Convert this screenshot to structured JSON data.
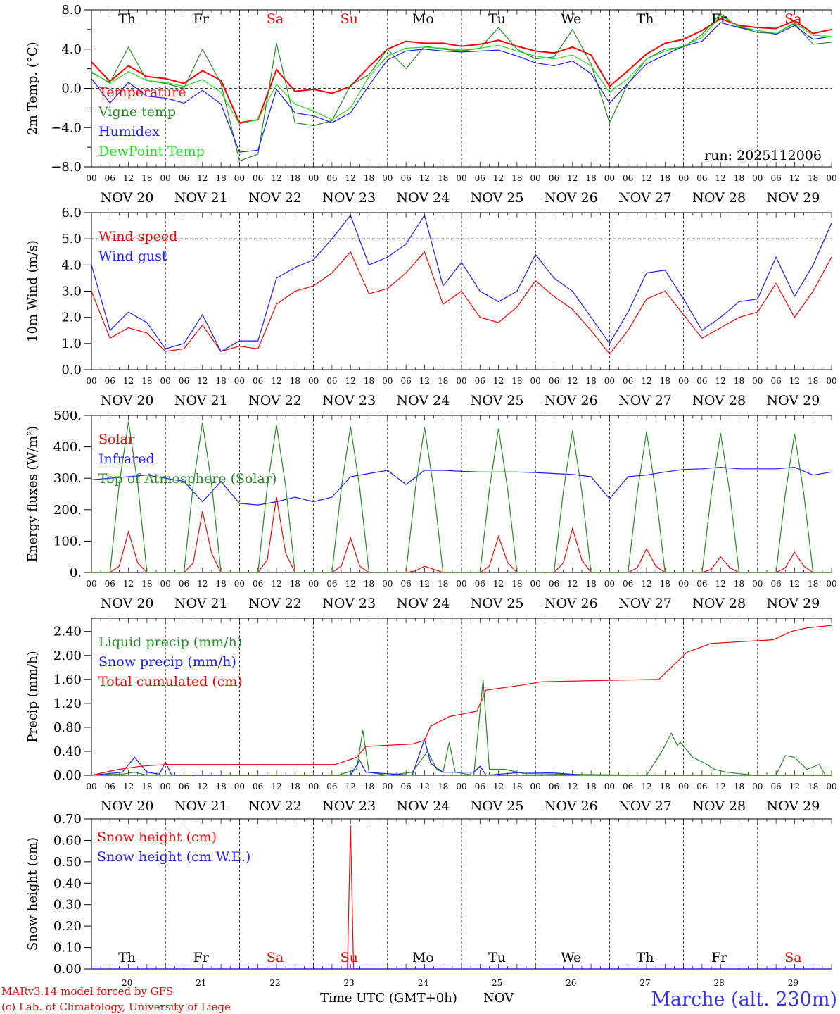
{
  "colors": {
    "red": "#ff0000",
    "darkgreen": "#228b22",
    "blue": "#1a1aff",
    "lightgreen": "#22e022",
    "black": "#000000"
  },
  "days": [
    {
      "abbr": "Th",
      "date": "NOV 20",
      "num": "20",
      "weekend": false
    },
    {
      "abbr": "Fr",
      "date": "NOV 21",
      "num": "21",
      "weekend": false
    },
    {
      "abbr": "Sa",
      "date": "NOV 22",
      "num": "22",
      "weekend": true
    },
    {
      "abbr": "Su",
      "date": "NOV 23",
      "num": "23",
      "weekend": true
    },
    {
      "abbr": "Mo",
      "date": "NOV 24",
      "num": "24",
      "weekend": false
    },
    {
      "abbr": "Tu",
      "date": "NOV 25",
      "num": "25",
      "weekend": false
    },
    {
      "abbr": "We",
      "date": "NOV 26",
      "num": "26",
      "weekend": false
    },
    {
      "abbr": "Th",
      "date": "NOV 27",
      "num": "27",
      "weekend": false
    },
    {
      "abbr": "Fr",
      "date": "NOV 28",
      "num": "28",
      "weekend": false
    },
    {
      "abbr": "Sa",
      "date": "NOV 29",
      "num": "29",
      "weekend": true
    }
  ],
  "hour_ticks": [
    "00",
    "06",
    "12",
    "18"
  ],
  "footer": {
    "model": "MARv3.14 model forced by GFS",
    "copyright": "(c) Lab. of Climatology, University of Liege",
    "xlabel": "Time UTC (GMT+0h)",
    "month": "NOV",
    "station": "Marche (alt. 230m)"
  },
  "chart_data": [
    {
      "type": "line",
      "ylabel": "2m Temp. (°C)",
      "ylim": [
        -8,
        8
      ],
      "yticks": [
        "8.0",
        "4.0",
        "0.0",
        "−4.0",
        "−8.0"
      ],
      "ytick_values": [
        8,
        4,
        0,
        -4,
        -8
      ],
      "refline": 0,
      "annotation": "run: 2025112006",
      "x_step_hours": 6,
      "series": [
        {
          "name": "Temperature",
          "color": "#ff0000",
          "values": [
            2.7,
            0.7,
            2.3,
            1.2,
            1.0,
            0.5,
            1.8,
            0.8,
            -3.5,
            -3.2,
            1.9,
            -0.3,
            -0.1,
            -0.5,
            0.2,
            2.2,
            4.0,
            4.8,
            4.6,
            4.6,
            4.3,
            4.5,
            4.9,
            4.3,
            3.8,
            3.6,
            4.2,
            3.4,
            0.2,
            1.8,
            3.5,
            4.6,
            5.0,
            5.9,
            7.1,
            6.4,
            6.2,
            6.1,
            6.9,
            5.6,
            6.0
          ]
        },
        {
          "name": "Vigne temp",
          "color": "#228b22",
          "values": [
            1.6,
            0.6,
            4.2,
            0.8,
            0.5,
            0.0,
            4.0,
            0.5,
            -7.4,
            -6.7,
            4.6,
            -3.5,
            -3.8,
            -3.3,
            0.3,
            1.4,
            4.0,
            2.0,
            4.3,
            4.0,
            3.8,
            4.1,
            6.2,
            4.0,
            3.0,
            3.2,
            6.0,
            2.5,
            -3.5,
            0.5,
            3.0,
            4.0,
            4.2,
            5.5,
            7.6,
            6.2,
            5.7,
            5.6,
            6.6,
            4.5,
            4.7
          ]
        },
        {
          "name": "Humidex",
          "color": "#1a1aff",
          "values": [
            1.0,
            -1.5,
            0.6,
            -0.8,
            -1.0,
            -1.5,
            -0.2,
            -1.6,
            -6.5,
            -6.3,
            -0.1,
            -2.5,
            -2.8,
            -3.5,
            -2.5,
            0.3,
            2.9,
            3.8,
            4.0,
            3.8,
            3.7,
            3.8,
            3.9,
            3.3,
            2.6,
            2.3,
            2.8,
            1.5,
            -1.5,
            0.5,
            2.5,
            3.4,
            4.3,
            4.8,
            6.7,
            6.2,
            5.9,
            5.5,
            6.4,
            5.0,
            5.3
          ]
        },
        {
          "name": "DewPoint Temp",
          "color": "#22e022",
          "values": [
            1.7,
            0.5,
            1.7,
            0.8,
            0.6,
            0.2,
            0.9,
            -0.4,
            -3.6,
            -3.2,
            0.4,
            -1.6,
            -2.3,
            -3.2,
            -2.0,
            1.2,
            3.3,
            4.1,
            4.2,
            4.1,
            3.9,
            4.1,
            4.4,
            3.8,
            3.3,
            3.0,
            3.4,
            2.3,
            -0.4,
            1.0,
            3.0,
            3.8,
            4.3,
            5.2,
            7.4,
            6.3,
            5.9,
            5.6,
            6.7,
            5.4,
            5.3
          ]
        }
      ]
    },
    {
      "type": "line",
      "ylabel": "10m Wind (m/s)",
      "ylim": [
        0,
        6
      ],
      "yticks": [
        "6.0",
        "5.0",
        "4.0",
        "3.0",
        "2.0",
        "1.0",
        "0.0"
      ],
      "ytick_values": [
        6,
        5,
        4,
        3,
        2,
        1,
        0
      ],
      "refline": 5,
      "x_step_hours": 6,
      "series": [
        {
          "name": "Wind speed",
          "color": "#ff0000",
          "values": [
            3.0,
            1.2,
            1.6,
            1.4,
            0.7,
            0.8,
            1.7,
            0.7,
            0.9,
            0.8,
            2.5,
            3.0,
            3.2,
            3.7,
            4.5,
            2.9,
            3.1,
            3.7,
            4.5,
            2.5,
            3.0,
            2.0,
            1.8,
            2.4,
            3.4,
            2.8,
            2.3,
            1.5,
            0.6,
            1.5,
            2.7,
            3.0,
            2.1,
            1.2,
            1.6,
            2.0,
            2.2,
            3.3,
            2.0,
            3.0,
            4.3
          ]
        },
        {
          "name": "Wind gust",
          "color": "#1a1aff",
          "values": [
            4.0,
            1.5,
            2.2,
            1.8,
            0.8,
            1.0,
            2.1,
            0.7,
            1.1,
            1.1,
            3.5,
            3.9,
            4.2,
            5.0,
            5.9,
            4.0,
            4.3,
            4.8,
            5.9,
            3.2,
            4.1,
            3.0,
            2.6,
            3.0,
            4.4,
            3.5,
            3.0,
            2.0,
            1.0,
            2.2,
            3.7,
            3.8,
            2.7,
            1.5,
            2.0,
            2.6,
            2.7,
            4.3,
            2.8,
            4.0,
            5.6
          ]
        }
      ]
    },
    {
      "type": "line",
      "ylabel": "Energy fluxes (W/m²)",
      "ylim": [
        0,
        500
      ],
      "yticks": [
        "500.",
        "400.",
        "300.",
        "200.",
        "100.",
        "0."
      ],
      "ytick_values": [
        500,
        400,
        300,
        200,
        100,
        0
      ],
      "series": [
        {
          "name": "Solar",
          "color": "#ff0000",
          "x_step_hours": 3,
          "values": [
            0,
            0,
            0,
            20,
            130,
            30,
            0,
            0,
            0,
            0,
            0,
            30,
            195,
            60,
            0,
            0,
            0,
            0,
            0,
            40,
            240,
            60,
            0,
            0,
            0,
            0,
            0,
            20,
            110,
            20,
            0,
            0,
            0,
            0,
            0,
            5,
            20,
            10,
            0,
            0,
            0,
            0,
            0,
            20,
            115,
            30,
            0,
            0,
            0,
            0,
            0,
            30,
            140,
            40,
            0,
            0,
            0,
            0,
            0,
            15,
            75,
            20,
            0,
            0,
            0,
            0,
            0,
            10,
            50,
            15,
            0,
            0,
            0,
            0,
            0,
            15,
            65,
            20,
            0,
            0,
            0
          ]
        },
        {
          "name": "Infrared",
          "color": "#1a1aff",
          "x_step_hours": 6,
          "values": [
            295,
            300,
            305,
            310,
            300,
            290,
            225,
            290,
            220,
            215,
            225,
            240,
            225,
            240,
            305,
            315,
            325,
            280,
            325,
            325,
            322,
            320,
            320,
            320,
            318,
            315,
            312,
            305,
            235,
            305,
            310,
            320,
            328,
            330,
            335,
            330,
            330,
            330,
            335,
            310,
            320
          ]
        },
        {
          "name": "Top of Atmosphere (Solar)",
          "color": "#228b22",
          "x_step_hours": 3,
          "values": [
            0,
            0,
            0,
            280,
            480,
            280,
            0,
            0,
            0,
            0,
            0,
            278,
            478,
            278,
            0,
            0,
            0,
            0,
            0,
            272,
            470,
            272,
            0,
            0,
            0,
            0,
            0,
            268,
            465,
            268,
            0,
            0,
            0,
            0,
            0,
            265,
            462,
            265,
            0,
            0,
            0,
            0,
            0,
            262,
            458,
            262,
            0,
            0,
            0,
            0,
            0,
            258,
            452,
            258,
            0,
            0,
            0,
            0,
            0,
            255,
            448,
            255,
            0,
            0,
            0,
            0,
            0,
            252,
            444,
            252,
            0,
            0,
            0,
            0,
            0,
            250,
            442,
            250,
            0,
            0,
            0
          ]
        }
      ]
    },
    {
      "type": "line",
      "ylabel": "Precip (mm/h)",
      "ylim": [
        0,
        2.62
      ],
      "yticks": [
        "2.40",
        "2.00",
        "1.60",
        "1.20",
        "0.80",
        "0.40",
        "0.00"
      ],
      "ytick_values": [
        2.4,
        2.0,
        1.6,
        1.2,
        0.8,
        0.4,
        0
      ],
      "series": [
        {
          "name": "Liquid precip (mm/h)",
          "color": "#228b22",
          "points": [
            [
              0,
              0
            ],
            [
              10,
              0.02
            ],
            [
              14,
              0.05
            ],
            [
              18,
              0
            ],
            [
              80,
              0
            ],
            [
              86,
              0.1
            ],
            [
              88,
              0.75
            ],
            [
              90,
              0.05
            ],
            [
              96,
              0
            ],
            [
              104,
              0.05
            ],
            [
              109,
              0.4
            ],
            [
              112,
              0.1
            ],
            [
              114,
              0.05
            ],
            [
              116,
              0.55
            ],
            [
              118,
              0.05
            ],
            [
              124,
              0
            ],
            [
              127,
              1.6
            ],
            [
              129,
              0.1
            ],
            [
              134,
              0.1
            ],
            [
              140,
              0.03
            ],
            [
              150,
              0.02
            ],
            [
              180,
              0
            ],
            [
              185,
              0.4
            ],
            [
              188,
              0.7
            ],
            [
              190,
              0.5
            ],
            [
              191,
              0.55
            ],
            [
              195,
              0.3
            ],
            [
              199,
              0.2
            ],
            [
              202,
              0.1
            ],
            [
              206,
              0.05
            ],
            [
              215,
              0
            ],
            [
              222,
              0
            ],
            [
              225,
              0.33
            ],
            [
              228,
              0.3
            ],
            [
              232,
              0.1
            ],
            [
              236,
              0.18
            ],
            [
              238,
              0
            ],
            [
              240,
              0
            ]
          ]
        },
        {
          "name": "Snow precip (mm/h)",
          "color": "#1a1aff",
          "points": [
            [
              0,
              0
            ],
            [
              10,
              0.05
            ],
            [
              14,
              0.3
            ],
            [
              18,
              0.05
            ],
            [
              22,
              0.02
            ],
            [
              24,
              0.22
            ],
            [
              26,
              0
            ],
            [
              84,
              0
            ],
            [
              87,
              0.25
            ],
            [
              89,
              0.05
            ],
            [
              104,
              0
            ],
            [
              108,
              0.6
            ],
            [
              110,
              0.2
            ],
            [
              114,
              0.05
            ],
            [
              124,
              0.05
            ],
            [
              126,
              0.15
            ],
            [
              128,
              0
            ],
            [
              140,
              0.05
            ],
            [
              150,
              0.04
            ],
            [
              160,
              0
            ],
            [
              240,
              0
            ]
          ]
        },
        {
          "name": "Total cumulated (cm)",
          "color": "#ff0000",
          "points": [
            [
              0,
              0
            ],
            [
              9,
              0.1
            ],
            [
              16,
              0.15
            ],
            [
              24,
              0.18
            ],
            [
              79,
              0.18
            ],
            [
              86,
              0.3
            ],
            [
              89,
              0.48
            ],
            [
              96,
              0.5
            ],
            [
              104,
              0.52
            ],
            [
              108,
              0.58
            ],
            [
              110,
              0.82
            ],
            [
              116,
              0.98
            ],
            [
              122,
              1.04
            ],
            [
              125,
              1.07
            ],
            [
              128,
              1.42
            ],
            [
              139,
              1.5
            ],
            [
              146,
              1.56
            ],
            [
              164,
              1.58
            ],
            [
              184,
              1.6
            ],
            [
              188,
              1.8
            ],
            [
              193,
              2.05
            ],
            [
              201,
              2.2
            ],
            [
              221,
              2.26
            ],
            [
              227,
              2.4
            ],
            [
              232,
              2.46
            ],
            [
              240,
              2.5
            ]
          ]
        }
      ]
    },
    {
      "type": "line",
      "ylabel": "Snow height (cm)",
      "ylim": [
        0,
        0.7
      ],
      "yticks": [
        "0.70",
        "0.60",
        "0.50",
        "0.40",
        "0.30",
        "0.20",
        "0.10",
        "0.00"
      ],
      "ytick_values": [
        0.7,
        0.6,
        0.5,
        0.4,
        0.3,
        0.2,
        0.1,
        0
      ],
      "series": [
        {
          "name": "Snow height (cm)",
          "color": "#ff0000",
          "points": [
            [
              0,
              0
            ],
            [
              83,
              0
            ],
            [
              84,
              0.67
            ],
            [
              85,
              0
            ],
            [
              240,
              0
            ]
          ]
        },
        {
          "name": "Snow height (cm W.E.)",
          "color": "#1a1aff",
          "points": [
            [
              0,
              0
            ],
            [
              240,
              0
            ]
          ]
        }
      ]
    }
  ]
}
